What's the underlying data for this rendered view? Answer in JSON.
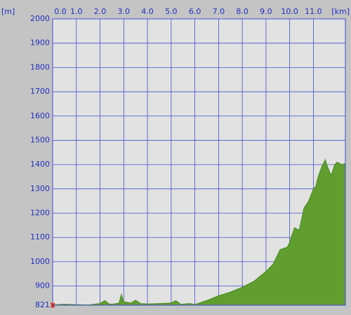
{
  "chart_data": {
    "type": "area",
    "y_unit": "[m]",
    "x_unit": "[km]",
    "x": [
      0,
      0.5,
      1,
      1.5,
      2,
      2.2,
      2.4,
      2.6,
      2.8,
      2.9,
      3.0,
      3.3,
      3.5,
      3.7,
      4,
      4.5,
      5,
      5.2,
      5.4,
      5.8,
      6,
      6.5,
      7,
      7.5,
      8,
      8.5,
      9,
      9.3,
      9.6,
      9.9,
      10.0,
      10.2,
      10.4,
      10.6,
      10.8,
      11.0,
      11.1,
      11.2,
      11.35,
      11.5,
      11.6,
      11.75,
      11.9,
      12.0,
      12.2,
      12.35
    ],
    "values": [
      822,
      825,
      823,
      822,
      828,
      840,
      825,
      826,
      830,
      865,
      835,
      830,
      842,
      828,
      826,
      828,
      830,
      840,
      825,
      828,
      824,
      840,
      860,
      875,
      895,
      920,
      960,
      990,
      1050,
      1060,
      1080,
      1140,
      1130,
      1220,
      1250,
      1300,
      1310,
      1350,
      1390,
      1420,
      1390,
      1355,
      1400,
      1410,
      1400,
      1405
    ],
    "color": "#5f9e2f",
    "xlim": [
      0,
      12.35
    ],
    "ylim": [
      821,
      2000
    ],
    "xticks": [
      {
        "value": 0,
        "label": "0.0"
      },
      {
        "value": 1,
        "label": "1.0"
      },
      {
        "value": 2,
        "label": "2.0"
      },
      {
        "value": 3,
        "label": "3.0"
      },
      {
        "value": 4,
        "label": "4.0"
      },
      {
        "value": 5,
        "label": "5.0"
      },
      {
        "value": 6,
        "label": "6.0"
      },
      {
        "value": 7,
        "label": "7.0"
      },
      {
        "value": 8,
        "label": "8.0"
      },
      {
        "value": 9,
        "label": "9.0"
      },
      {
        "value": 10,
        "label": "10.0"
      },
      {
        "value": 11,
        "label": "11.0"
      }
    ],
    "yticks": [
      821,
      900,
      1000,
      1100,
      1200,
      1300,
      1400,
      1500,
      1600,
      1700,
      1800,
      1900,
      2000
    ],
    "grid": true
  }
}
